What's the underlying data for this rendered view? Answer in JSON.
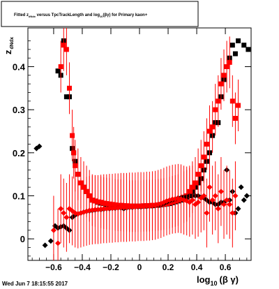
{
  "chart_data": {
    "type": "scatter",
    "title": {
      "main": "Fitted  z",
      "sub1": "dNdx",
      "mid": "  versus TpcTrackLength and log",
      "sub2": "10",
      "end": "(βγ) for Primary kaon+"
    },
    "ylabel": {
      "main": "z",
      "sub": "dNdx"
    },
    "xlabel": {
      "main": "log",
      "sub": "10",
      "end": "(β γ)"
    },
    "footer": "Wed Jun  7 18:15:55 2017",
    "xlim": [
      -0.78,
      0.78
    ],
    "ylim": [
      -0.05,
      0.49
    ],
    "x_ticks": [
      -0.6,
      -0.4,
      -0.2,
      0,
      0.2,
      0.4,
      0.6
    ],
    "x_tick_labels": [
      "−0.6",
      "−0.4",
      "−0.2",
      "0",
      "0.2",
      "0.4",
      "0.6"
    ],
    "y_ticks": [
      0,
      0.1,
      0.2,
      0.3,
      0.4
    ],
    "y_tick_labels": [
      "0",
      "0.1",
      "0.2",
      "0.3",
      "0.4"
    ],
    "series": [
      {
        "marker": "square",
        "color": "#000000",
        "points": [
          [
            -0.57,
            0.39
          ],
          [
            -0.55,
            0.38
          ],
          [
            -0.53,
            0.46
          ],
          [
            -0.51,
            0.33
          ],
          [
            -0.49,
            0.33
          ],
          [
            -0.47,
            0.21
          ],
          [
            -0.46,
            0.2
          ],
          [
            -0.45,
            0.18
          ],
          [
            -0.43,
            0.15
          ],
          [
            -0.41,
            0.13
          ],
          [
            -0.39,
            0.12
          ],
          [
            -0.37,
            0.11
          ],
          [
            -0.35,
            0.1
          ],
          [
            -0.33,
            0.09
          ],
          [
            -0.31,
            0.088
          ],
          [
            -0.29,
            0.085
          ],
          [
            -0.27,
            0.083
          ],
          [
            -0.25,
            0.082
          ],
          [
            -0.23,
            0.08
          ],
          [
            -0.21,
            0.08
          ],
          [
            -0.19,
            0.078
          ],
          [
            -0.17,
            0.078
          ],
          [
            -0.15,
            0.077
          ],
          [
            -0.13,
            0.077
          ],
          [
            -0.11,
            0.077
          ],
          [
            -0.09,
            0.076
          ],
          [
            -0.07,
            0.076
          ],
          [
            -0.05,
            0.076
          ],
          [
            -0.03,
            0.076
          ],
          [
            -0.01,
            0.076
          ],
          [
            0.01,
            0.076
          ],
          [
            0.03,
            0.076
          ],
          [
            0.05,
            0.077
          ],
          [
            0.07,
            0.077
          ],
          [
            0.09,
            0.077
          ],
          [
            0.11,
            0.078
          ],
          [
            0.13,
            0.078
          ],
          [
            0.15,
            0.079
          ],
          [
            0.17,
            0.08
          ],
          [
            0.19,
            0.081
          ],
          [
            0.21,
            0.082
          ],
          [
            0.23,
            0.084
          ],
          [
            0.25,
            0.086
          ],
          [
            0.27,
            0.088
          ],
          [
            0.29,
            0.09
          ],
          [
            0.31,
            0.093
          ],
          [
            0.33,
            0.097
          ],
          [
            0.35,
            0.1
          ],
          [
            0.37,
            0.11
          ],
          [
            0.39,
            0.12
          ],
          [
            0.41,
            0.13
          ],
          [
            0.43,
            0.14
          ],
          [
            0.45,
            0.16
          ],
          [
            0.47,
            0.18
          ],
          [
            0.49,
            0.2
          ],
          [
            0.51,
            0.24
          ],
          [
            0.53,
            0.27
          ],
          [
            0.55,
            0.27
          ],
          [
            0.57,
            0.33
          ],
          [
            0.59,
            0.37
          ],
          [
            0.61,
            0.4
          ],
          [
            0.63,
            0.42
          ],
          [
            0.65,
            0.45
          ],
          [
            0.67,
            0.43
          ],
          [
            0.69,
            0.46
          ],
          [
            0.73,
            0.45
          ],
          [
            0.76,
            0.44
          ]
        ]
      },
      {
        "marker": "square",
        "color": "#ff0000",
        "error": 0.06,
        "points": [
          [
            -0.55,
            0.4
          ],
          [
            -0.53,
            0.45
          ],
          [
            -0.51,
            0.44
          ],
          [
            -0.49,
            0.35
          ],
          [
            -0.47,
            0.24
          ],
          [
            -0.46,
            0.2
          ],
          [
            -0.45,
            0.17
          ],
          [
            -0.43,
            0.15
          ],
          [
            -0.41,
            0.13
          ],
          [
            -0.39,
            0.12
          ],
          [
            -0.37,
            0.11
          ],
          [
            -0.35,
            0.1
          ],
          [
            -0.33,
            0.09
          ],
          [
            -0.31,
            0.088
          ],
          [
            -0.29,
            0.086
          ],
          [
            -0.27,
            0.085
          ],
          [
            -0.25,
            0.083
          ],
          [
            -0.23,
            0.082
          ],
          [
            -0.21,
            0.081
          ],
          [
            -0.19,
            0.08
          ],
          [
            -0.17,
            0.079
          ],
          [
            -0.15,
            0.078
          ],
          [
            -0.13,
            0.078
          ],
          [
            -0.11,
            0.077
          ],
          [
            -0.09,
            0.077
          ],
          [
            -0.07,
            0.076
          ],
          [
            -0.05,
            0.076
          ],
          [
            -0.03,
            0.076
          ],
          [
            -0.01,
            0.076
          ],
          [
            0.01,
            0.076
          ],
          [
            0.03,
            0.077
          ],
          [
            0.05,
            0.077
          ],
          [
            0.07,
            0.077
          ],
          [
            0.09,
            0.078
          ],
          [
            0.11,
            0.078
          ],
          [
            0.13,
            0.079
          ],
          [
            0.15,
            0.08
          ],
          [
            0.17,
            0.081
          ],
          [
            0.19,
            0.082
          ],
          [
            0.21,
            0.084
          ],
          [
            0.23,
            0.086
          ],
          [
            0.25,
            0.088
          ],
          [
            0.27,
            0.09
          ],
          [
            0.29,
            0.093
          ],
          [
            0.31,
            0.097
          ],
          [
            0.33,
            0.1
          ],
          [
            0.35,
            0.11
          ],
          [
            0.37,
            0.12
          ],
          [
            0.39,
            0.13
          ],
          [
            0.41,
            0.15
          ],
          [
            0.43,
            0.17
          ],
          [
            0.45,
            0.19
          ],
          [
            0.47,
            0.22
          ],
          [
            0.49,
            0.25
          ],
          [
            0.51,
            0.26
          ],
          [
            0.53,
            0.3
          ],
          [
            0.55,
            0.32
          ],
          [
            0.57,
            0.36
          ],
          [
            0.59,
            0.38
          ],
          [
            0.61,
            0.4
          ],
          [
            0.63,
            0.41
          ],
          [
            0.65,
            0.32
          ],
          [
            0.67,
            0.28
          ],
          [
            0.69,
            0.31
          ]
        ]
      },
      {
        "marker": "diamond",
        "color": "#000000",
        "points": [
          [
            -0.72,
            0.21
          ],
          [
            -0.7,
            0.215
          ],
          [
            -0.66,
            -0.015
          ],
          [
            -0.62,
            -0.005
          ],
          [
            -0.59,
            0.03
          ],
          [
            -0.57,
            0.025
          ],
          [
            -0.55,
            0.028
          ],
          [
            -0.53,
            0.03
          ],
          [
            -0.51,
            0.025
          ],
          [
            -0.49,
            0.02
          ],
          [
            -0.47,
            0.05
          ],
          [
            -0.45,
            0.055
          ],
          [
            -0.43,
            0.058
          ],
          [
            -0.41,
            0.06
          ],
          [
            -0.39,
            0.062
          ],
          [
            -0.37,
            0.064
          ],
          [
            -0.35,
            0.065
          ],
          [
            -0.33,
            0.066
          ],
          [
            -0.31,
            0.067
          ],
          [
            -0.29,
            0.068
          ],
          [
            -0.27,
            0.068
          ],
          [
            -0.25,
            0.069
          ],
          [
            -0.23,
            0.07
          ],
          [
            -0.21,
            0.07
          ],
          [
            -0.19,
            0.071
          ],
          [
            -0.17,
            0.071
          ],
          [
            -0.15,
            0.072
          ],
          [
            -0.13,
            0.072
          ],
          [
            -0.11,
            0.07
          ],
          [
            -0.09,
            0.072
          ],
          [
            -0.07,
            0.073
          ],
          [
            -0.05,
            0.073
          ],
          [
            -0.03,
            0.074
          ],
          [
            -0.01,
            0.074
          ],
          [
            0.01,
            0.074
          ],
          [
            0.03,
            0.075
          ],
          [
            0.05,
            0.075
          ],
          [
            0.07,
            0.076
          ],
          [
            0.09,
            0.076
          ],
          [
            0.11,
            0.077
          ],
          [
            0.13,
            0.078
          ],
          [
            0.15,
            0.08
          ],
          [
            0.17,
            0.082
          ],
          [
            0.19,
            0.085
          ],
          [
            0.21,
            0.088
          ],
          [
            0.23,
            0.09
          ],
          [
            0.25,
            0.092
          ],
          [
            0.27,
            0.095
          ],
          [
            0.29,
            0.096
          ],
          [
            0.31,
            0.097
          ],
          [
            0.33,
            0.098
          ],
          [
            0.35,
            0.1
          ],
          [
            0.37,
            0.1
          ],
          [
            0.39,
            0.1
          ],
          [
            0.41,
            0.1
          ],
          [
            0.43,
            0.097
          ],
          [
            0.45,
            0.095
          ],
          [
            0.47,
            0.09
          ],
          [
            0.49,
            0.085
          ],
          [
            0.51,
            0.085
          ],
          [
            0.53,
            0.08
          ],
          [
            0.55,
            0.08
          ],
          [
            0.57,
            0.085
          ],
          [
            0.59,
            0.085
          ],
          [
            0.61,
            0.16
          ],
          [
            0.63,
            0.09
          ],
          [
            0.65,
            0.11
          ],
          [
            0.67,
            0.06
          ],
          [
            0.69,
            0.07
          ],
          [
            0.71,
            0.12
          ],
          [
            0.73,
            0.09
          ],
          [
            0.75,
            0.1
          ]
        ]
      },
      {
        "marker": "diamond",
        "color": "#ff0000",
        "error": 0.08,
        "points": [
          [
            -0.6,
            0.02
          ],
          [
            -0.57,
            -0.01
          ],
          [
            -0.55,
            0.07
          ],
          [
            -0.53,
            0.06
          ],
          [
            -0.51,
            0.05
          ],
          [
            -0.49,
            0.07
          ],
          [
            -0.47,
            0.065
          ],
          [
            -0.45,
            0.06
          ],
          [
            -0.43,
            0.058
          ],
          [
            -0.41,
            0.06
          ],
          [
            -0.39,
            0.062
          ],
          [
            -0.37,
            0.064
          ],
          [
            -0.35,
            0.066
          ],
          [
            -0.33,
            0.067
          ],
          [
            -0.31,
            0.068
          ],
          [
            -0.29,
            0.068
          ],
          [
            -0.27,
            0.069
          ],
          [
            -0.25,
            0.07
          ],
          [
            -0.23,
            0.07
          ],
          [
            -0.21,
            0.071
          ],
          [
            -0.19,
            0.071
          ],
          [
            -0.17,
            0.072
          ],
          [
            -0.15,
            0.072
          ],
          [
            -0.13,
            0.073
          ],
          [
            -0.11,
            0.073
          ],
          [
            -0.09,
            0.073
          ],
          [
            -0.07,
            0.074
          ],
          [
            -0.05,
            0.074
          ],
          [
            -0.03,
            0.074
          ],
          [
            -0.01,
            0.075
          ],
          [
            0.01,
            0.075
          ],
          [
            0.03,
            0.075
          ],
          [
            0.05,
            0.076
          ],
          [
            0.07,
            0.076
          ],
          [
            0.09,
            0.077
          ],
          [
            0.11,
            0.078
          ],
          [
            0.13,
            0.08
          ],
          [
            0.15,
            0.082
          ],
          [
            0.17,
            0.085
          ],
          [
            0.19,
            0.088
          ],
          [
            0.21,
            0.09
          ],
          [
            0.23,
            0.092
          ],
          [
            0.25,
            0.093
          ],
          [
            0.27,
            0.094
          ],
          [
            0.29,
            0.093
          ],
          [
            0.31,
            0.09
          ],
          [
            0.33,
            0.088
          ],
          [
            0.35,
            0.085
          ],
          [
            0.37,
            0.09
          ],
          [
            0.39,
            0.08
          ],
          [
            0.41,
            0.085
          ],
          [
            0.43,
            0.095
          ],
          [
            0.45,
            0.1
          ],
          [
            0.47,
            0.06
          ],
          [
            0.49,
            0.12
          ],
          [
            0.51,
            0.09
          ],
          [
            0.53,
            0.1
          ],
          [
            0.55,
            0.07
          ],
          [
            0.57,
            0.11
          ],
          [
            0.59,
            0.08
          ],
          [
            0.61,
            0.09
          ],
          [
            0.63,
            0.08
          ],
          [
            0.65,
            0.06
          ],
          [
            0.67,
            0.1
          ]
        ]
      }
    ]
  }
}
